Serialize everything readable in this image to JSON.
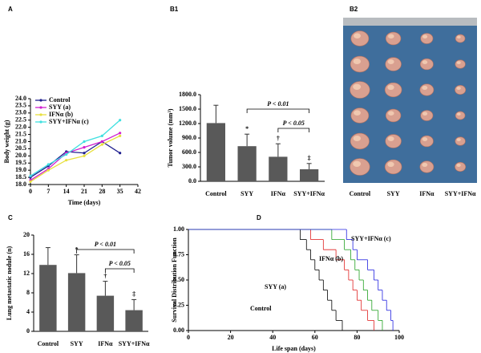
{
  "chart_data": [
    {
      "type": "line",
      "label": "A",
      "xlabel": "Time (days)",
      "ylabel": "Body weight (g)",
      "x": [
        0,
        7,
        14,
        21,
        28,
        35
      ],
      "xlim": [
        0,
        42
      ],
      "xticks": [
        0,
        7,
        14,
        21,
        28,
        35,
        42
      ],
      "ylim": [
        18,
        24
      ],
      "yticks": [
        {
          "value": 18,
          "label": "18.0"
        },
        {
          "value": 18.5,
          "label": "18.5"
        },
        {
          "value": 19,
          "label": "19.0"
        },
        {
          "value": 19.5,
          "label": "19.5"
        },
        {
          "value": 20,
          "label": "20.0"
        },
        {
          "value": 20.5,
          "label": "20.5"
        },
        {
          "value": 21,
          "label": "21.0"
        },
        {
          "value": 21.5,
          "label": "21.5"
        },
        {
          "value": 22,
          "label": "22.0"
        },
        {
          "value": 22.5,
          "label": "22.5"
        },
        {
          "value": 23,
          "label": "23.0"
        },
        {
          "value": 23.5,
          "label": "23.5"
        },
        {
          "value": 24,
          "label": "24.0"
        }
      ],
      "series": [
        {
          "name": "Control",
          "color": "#1f1f8f",
          "values": [
            18.5,
            19.3,
            20.3,
            20.2,
            21.0,
            20.2
          ]
        },
        {
          "name": "SYY (a)",
          "color": "#d020d0",
          "values": [
            18.3,
            19.1,
            20.2,
            20.6,
            21.0,
            21.6
          ]
        },
        {
          "name": "IFNα (b)",
          "color": "#e8e040",
          "values": [
            18.2,
            19.0,
            19.7,
            20.0,
            20.8,
            21.4
          ]
        },
        {
          "name": "SYY+IFNα (c)",
          "color": "#40e0e0",
          "values": [
            18.6,
            19.4,
            20.1,
            21.0,
            21.4,
            22.5
          ]
        }
      ]
    },
    {
      "type": "bar",
      "label": "B1",
      "ylabel": "Tumor volume (mm³)",
      "categories": [
        "Control",
        "SYY",
        "IFNα",
        "SYY+IFNα"
      ],
      "values": [
        1210,
        730,
        510,
        250
      ],
      "errors": [
        370,
        250,
        270,
        120
      ],
      "color": "#595959",
      "ylim": [
        0,
        1800
      ],
      "yticks": [
        {
          "value": 0,
          "label": "0.0"
        },
        {
          "value": 300,
          "label": "300.0"
        },
        {
          "value": 600,
          "label": "600.0"
        },
        {
          "value": 900,
          "label": "900.0"
        },
        {
          "value": 1200,
          "label": "1200.0"
        },
        {
          "value": 1500,
          "label": "1500.0"
        },
        {
          "value": 1800,
          "label": "1800.0"
        }
      ],
      "markers": [
        null,
        "*",
        "†",
        "‡"
      ],
      "comparisons": [
        {
          "from": "SYY",
          "to": "SYY+IFNα",
          "label": "P < 0.01"
        },
        {
          "from": "IFNα",
          "to": "SYY+IFNα",
          "label": "P < 0.05"
        }
      ]
    },
    {
      "type": "image",
      "label": "B2",
      "categories": [
        "Control",
        "SYY",
        "IFNα",
        "SYY+IFNα"
      ]
    },
    {
      "type": "bar",
      "label": "C",
      "ylabel": "Lung metastatic nodule (n)",
      "categories": [
        "Control",
        "SYY",
        "IFNα",
        "SYY+IFNα"
      ],
      "values": [
        13.8,
        12.1,
        7.4,
        4.4
      ],
      "errors": [
        3.6,
        3.8,
        3.0,
        2.2
      ],
      "color": "#595959",
      "ylim": [
        0,
        20
      ],
      "yticks": [
        0,
        4,
        8,
        12,
        16,
        20
      ],
      "markers": [
        null,
        "*",
        "†",
        "‡"
      ],
      "comparisons": [
        {
          "from": "SYY",
          "to": "SYY+IFNα",
          "label": "P < 0.01"
        },
        {
          "from": "IFNα",
          "to": "SYY+IFNα",
          "label": "P < 0.05"
        }
      ]
    },
    {
      "type": "step",
      "label": "D",
      "xlabel": "Life span (days)",
      "ylabel": "Survival Distribution Function",
      "xlim": [
        0,
        100
      ],
      "xticks": [
        0,
        20,
        40,
        60,
        80,
        100
      ],
      "ylim": [
        0,
        1
      ],
      "yticks": [
        {
          "value": 0,
          "label": "0.00"
        },
        {
          "value": 0.25,
          "label": "0.25"
        },
        {
          "value": 0.5,
          "label": "0.50"
        },
        {
          "value": 0.75,
          "label": "0.75"
        },
        {
          "value": 1,
          "label": "1.00"
        }
      ],
      "series": [
        {
          "name": "Control",
          "color": "#000000",
          "x": [
            0,
            53,
            56,
            58,
            60,
            62,
            64,
            66,
            68,
            70,
            73
          ],
          "values": [
            1,
            0.9,
            0.8,
            0.7,
            0.6,
            0.5,
            0.4,
            0.3,
            0.2,
            0.1,
            0
          ]
        },
        {
          "name": "SYY (a)",
          "color": "#e02020",
          "x": [
            0,
            58,
            64,
            70,
            74,
            76,
            78,
            80,
            82,
            85,
            88
          ],
          "values": [
            1,
            0.9,
            0.8,
            0.7,
            0.6,
            0.5,
            0.4,
            0.3,
            0.2,
            0.1,
            0
          ]
        },
        {
          "name": "IFNα (b)",
          "color": "#20a020",
          "x": [
            0,
            68,
            74,
            77,
            79,
            81,
            83,
            85,
            87,
            90,
            92
          ],
          "values": [
            1,
            0.9,
            0.8,
            0.7,
            0.6,
            0.5,
            0.4,
            0.3,
            0.2,
            0.1,
            0
          ]
        },
        {
          "name": "SYY+IFNα (c)",
          "color": "#2020e0",
          "x": [
            0,
            75,
            78,
            80,
            85,
            88,
            90,
            92,
            94,
            96,
            97
          ],
          "values": [
            1,
            0.9,
            0.8,
            0.7,
            0.6,
            0.5,
            0.4,
            0.3,
            0.2,
            0.1,
            0
          ]
        }
      ]
    }
  ]
}
